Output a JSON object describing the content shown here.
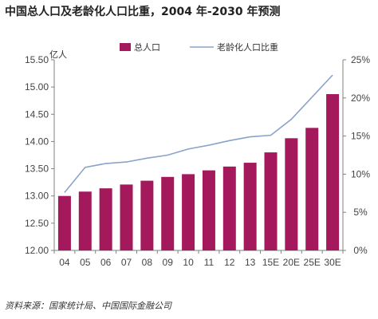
{
  "title": "中国总人口及老龄化人口比重，2004 年-2030 年预测",
  "source": "资料来源：国家统计局、中国国际金融公司",
  "colors": {
    "bar": "#a3195b",
    "line": "#8aa3c9",
    "axis": "#808080"
  },
  "chart_data": {
    "type": "bar",
    "categories": [
      "04",
      "05",
      "06",
      "07",
      "08",
      "09",
      "10",
      "11",
      "12",
      "13",
      "15E",
      "20E",
      "25E",
      "30E"
    ],
    "series": [
      {
        "name": "总人口",
        "type": "bar",
        "axis": "left",
        "values": [
          13.0,
          13.08,
          13.14,
          13.21,
          13.28,
          13.35,
          13.4,
          13.47,
          13.54,
          13.61,
          13.8,
          14.06,
          14.25,
          14.87
        ]
      },
      {
        "name": "老龄化人口比重",
        "type": "line",
        "axis": "right",
        "values": [
          7.6,
          10.9,
          11.4,
          11.6,
          12.1,
          12.5,
          13.3,
          13.8,
          14.4,
          14.9,
          15.1,
          17.2,
          20.1,
          23.0
        ]
      }
    ],
    "ylabel_left": "亿人",
    "ylim_left": [
      12.0,
      15.5
    ],
    "yticks_left": [
      "12.00",
      "12.50",
      "13.00",
      "13.50",
      "14.00",
      "14.50",
      "15.00",
      "15.50"
    ],
    "ylim_right": [
      0,
      25
    ],
    "yticks_right": [
      "0%",
      "5%",
      "10%",
      "15%",
      "20%",
      "25%"
    ],
    "legend_position": "top",
    "grid": false
  }
}
